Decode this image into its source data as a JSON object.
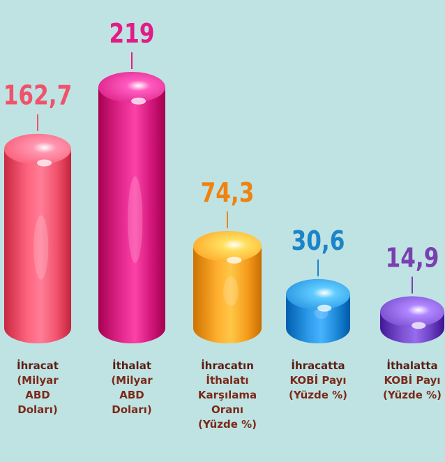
{
  "chart_data": {
    "type": "bar",
    "style": "3d-cylinder",
    "categories": [
      [
        "İhracat",
        "(Milyar",
        "ABD",
        "Doları)"
      ],
      [
        "İthalat",
        "(Milyar",
        "ABD",
        "Doları)"
      ],
      [
        "İhracatın",
        "İthalatı",
        "Karşılama",
        "Oranı",
        "(Yüzde %)"
      ],
      [
        "İhracatta",
        "KOBİ Payı",
        "(Yüzde %)"
      ],
      [
        "İthalatta",
        "KOBİ Payı",
        "(Yüzde %)"
      ]
    ],
    "values": [
      162.7,
      219,
      74.3,
      30.6,
      14.9
    ],
    "value_labels": [
      "162,7",
      "219",
      "74,3",
      "30,6",
      "14,9"
    ],
    "colors": [
      "#f0506a",
      "#d0157a",
      "#f59a1a",
      "#1a86d6",
      "#6a3fc0"
    ],
    "label_colors": [
      "#f0526b",
      "#e21c86",
      "#f0820f",
      "#1c84c8",
      "#7a3fb0"
    ],
    "background": "#bfe3e3",
    "label_text_colors": {
      "first_line": "#5a1e14",
      "other_lines": "#7a2a18"
    }
  }
}
